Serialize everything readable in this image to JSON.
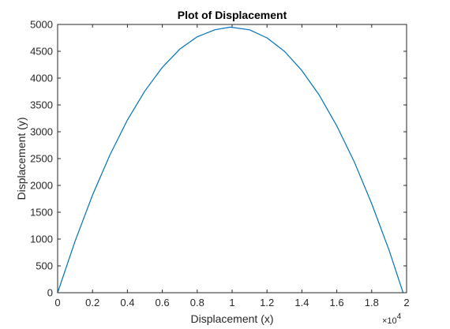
{
  "chart_data": {
    "type": "line",
    "title": "Plot of Displacement",
    "xlabel": "Displacement (x)",
    "ylabel": "Displacement (y)",
    "x_multiplier_label": "×10",
    "x_multiplier_exponent": "4",
    "xlim": [
      0,
      20000
    ],
    "ylim": [
      0,
      5000
    ],
    "xticks": [
      0,
      2000,
      4000,
      6000,
      8000,
      10000,
      12000,
      14000,
      16000,
      18000,
      20000
    ],
    "xtick_labels": [
      "0",
      "0.2",
      "0.4",
      "0.6",
      "0.8",
      "1",
      "1.2",
      "1.4",
      "1.6",
      "1.8",
      "2"
    ],
    "yticks": [
      0,
      500,
      1000,
      1500,
      2000,
      2500,
      3000,
      3500,
      4000,
      4500,
      5000
    ],
    "ytick_labels": [
      "0",
      "500",
      "1000",
      "1500",
      "2000",
      "2500",
      "3000",
      "3500",
      "4000",
      "4500",
      "5000"
    ],
    "grid": false,
    "line_color": "#0072BD",
    "series": [
      {
        "x": [
          0,
          1000,
          2000,
          3000,
          4000,
          5000,
          6000,
          7000,
          8000,
          9000,
          9900,
          11000,
          12000,
          13000,
          14000,
          15000,
          16000,
          17000,
          18000,
          19000,
          19800
        ],
        "y": [
          0,
          960,
          1820,
          2570,
          3220,
          3760,
          4200,
          4540,
          4770,
          4900,
          4950,
          4900,
          4750,
          4500,
          4140,
          3680,
          3110,
          2440,
          1660,
          790,
          0
        ]
      }
    ]
  }
}
